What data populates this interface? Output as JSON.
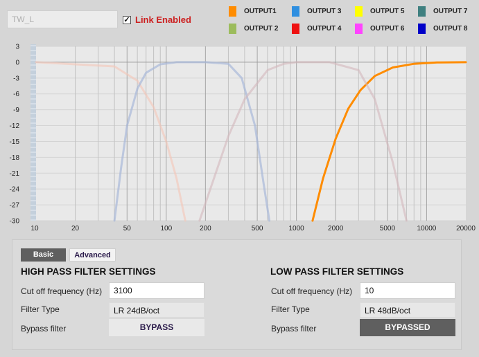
{
  "header": {
    "name_value": "TW_L",
    "link_checked": true,
    "link_label": "Link Enabled"
  },
  "legend": [
    {
      "label": "OUTPUT1",
      "color": "#ff8c00"
    },
    {
      "label": "OUTPUT 2",
      "color": "#9cbc5c"
    },
    {
      "label": "OUTPUT 3",
      "color": "#2f8fe0"
    },
    {
      "label": "OUTPUT 4",
      "color": "#ee1111"
    },
    {
      "label": "OUTPUT 5",
      "color": "#ffff00"
    },
    {
      "label": "OUTPUT 6",
      "color": "#ff44ff"
    },
    {
      "label": "OUTPUT 7",
      "color": "#3f8080"
    },
    {
      "label": "OUTPUT 8",
      "color": "#0000c8"
    }
  ],
  "chart_data": {
    "type": "line",
    "x_scale": "log",
    "xlim": [
      10,
      20000
    ],
    "ylim": [
      -30,
      3
    ],
    "x_ticks": [
      "10",
      "20",
      "50",
      "100",
      "200",
      "500",
      "1000",
      "2000",
      "5000",
      "10000",
      "20000"
    ],
    "y_ticks": [
      "3",
      "0",
      "-3",
      "-6",
      "-9",
      "-12",
      "-15",
      "-18",
      "-21",
      "-24",
      "-27",
      "-30"
    ],
    "series": [
      {
        "color": "#ff8c00",
        "opacity": 1.0,
        "x": [
          1330,
          1600,
          2000,
          2500,
          3100,
          4000,
          5500,
          8000,
          12000,
          20000
        ],
        "y": [
          -30,
          -22,
          -14.5,
          -8.8,
          -5.3,
          -2.6,
          -1.0,
          -0.3,
          -0.05,
          0
        ]
      },
      {
        "color": "#f5c7b8",
        "opacity": 0.6,
        "x": [
          10,
          40,
          60,
          80,
          100,
          120,
          140
        ],
        "y": [
          0,
          -0.8,
          -3.5,
          -8.5,
          -15,
          -22,
          -30
        ]
      },
      {
        "color": "#a8b8d8",
        "opacity": 0.7,
        "x": [
          40,
          45,
          50,
          60,
          70,
          90,
          120,
          200,
          300,
          380,
          480,
          560,
          620
        ],
        "y": [
          -30,
          -20,
          -12,
          -5,
          -2,
          -0.4,
          0,
          0,
          -0.3,
          -3,
          -12,
          -23,
          -30
        ]
      },
      {
        "color": "#d4b8bd",
        "opacity": 0.6,
        "x": [
          180,
          300,
          400,
          600,
          800,
          1000,
          1800,
          3000,
          4000,
          5500,
          7000
        ],
        "y": [
          -30,
          -14,
          -7,
          -1.5,
          -0.3,
          0,
          0,
          -1.5,
          -7,
          -19,
          -30
        ]
      }
    ]
  },
  "panel": {
    "tabs": {
      "basic": "Basic",
      "advanced": "Advanced"
    },
    "hpf": {
      "title": "HIGH PASS FILTER SETTINGS",
      "cutoff_label": "Cut off frequency (Hz)",
      "cutoff_value": "3100",
      "type_label": "Filter Type",
      "type_value": "LR 24dB/oct",
      "bypass_label": "Bypass filter",
      "bypass_button": "BYPASS"
    },
    "lpf": {
      "title": "LOW PASS FILTER SETTINGS",
      "cutoff_label": "Cut off frequency (Hz)",
      "cutoff_value": "10",
      "type_label": "Filter Type",
      "type_value": "LR 48dB/oct",
      "bypass_label": "Bypass filter",
      "bypass_button": "BYPASSED"
    }
  }
}
